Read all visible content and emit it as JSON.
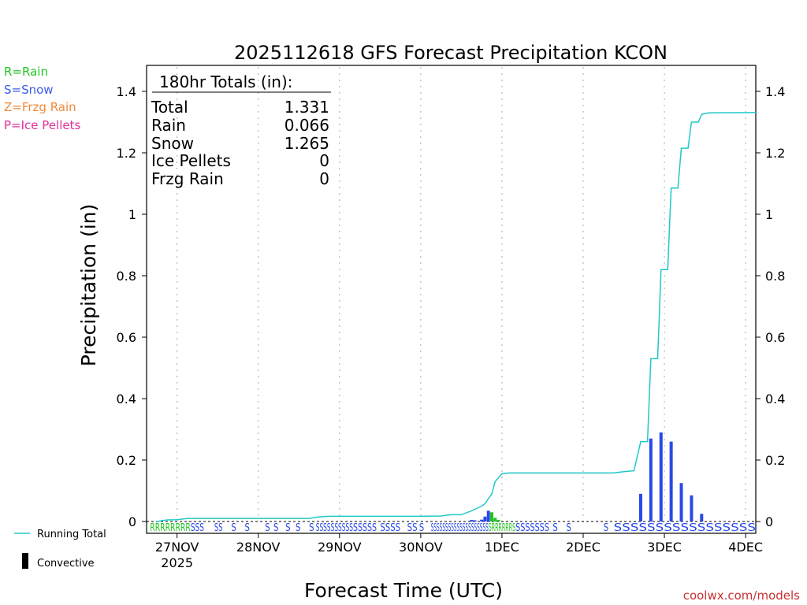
{
  "legend_types": [
    {
      "label": "R=Rain",
      "color": "#22c322"
    },
    {
      "label": "S=Snow",
      "color": "#3a5ee8"
    },
    {
      "label": "Z=Frzg Rain",
      "color": "#f08a3a"
    },
    {
      "label": "P=Ice Pellets",
      "color": "#e0329a"
    }
  ],
  "bottom_legend": {
    "running_total": "Running Total",
    "convective": "Convective"
  },
  "credit": "coolwx.com/models",
  "totals_box": {
    "header": "180hr Totals (in):",
    "rows": [
      {
        "label": "Total",
        "value": "1.331"
      },
      {
        "label": "Rain",
        "value": "0.066"
      },
      {
        "label": "Snow",
        "value": "1.265"
      },
      {
        "label": "Ice Pellets",
        "value": "0"
      },
      {
        "label": "Frzg Rain",
        "value": "0"
      }
    ]
  },
  "colors": {
    "running_total": "#20c8c8",
    "snow": "#2848e8",
    "rain": "#22c322",
    "grid": "#b8b8b8"
  },
  "chart_data": {
    "type": "bar",
    "title": "2025112618 GFS Forecast Precipitation KCON",
    "xlabel": "Forecast Time (UTC)",
    "ylabel": "Precipitation (in)",
    "ylim": [
      0,
      1.45
    ],
    "yticks": [
      0,
      0.2,
      0.4,
      0.6,
      0.8,
      1,
      1.2,
      1.4
    ],
    "ytick_labels": [
      "0",
      "0.2",
      "0.4",
      "0.6",
      "0.8",
      "1",
      "1.2",
      "1.4"
    ],
    "xlim_hours": [
      -3,
      177
    ],
    "x_ticks": [
      {
        "hour": 6,
        "label": "27NOV",
        "sub": "2025"
      },
      {
        "hour": 30,
        "label": "28NOV"
      },
      {
        "hour": 54,
        "label": "29NOV"
      },
      {
        "hour": 78,
        "label": "30NOV"
      },
      {
        "hour": 102,
        "label": "1DEC"
      },
      {
        "hour": 126,
        "label": "2DEC"
      },
      {
        "hour": 150,
        "label": "3DEC"
      },
      {
        "hour": 174,
        "label": "4DEC"
      }
    ],
    "running_total": [
      [
        0,
        0
      ],
      [
        3,
        0.005
      ],
      [
        6,
        0.006
      ],
      [
        9,
        0.01
      ],
      [
        24,
        0.01
      ],
      [
        45,
        0.01
      ],
      [
        48,
        0.015
      ],
      [
        51,
        0.017
      ],
      [
        78,
        0.017
      ],
      [
        84,
        0.018
      ],
      [
        87,
        0.022
      ],
      [
        90,
        0.022
      ],
      [
        93,
        0.035
      ],
      [
        96,
        0.05
      ],
      [
        97,
        0.058
      ],
      [
        99,
        0.09
      ],
      [
        100,
        0.13
      ],
      [
        102,
        0.155
      ],
      [
        104,
        0.158
      ],
      [
        135,
        0.158
      ],
      [
        138,
        0.162
      ],
      [
        141,
        0.165
      ],
      [
        143,
        0.26
      ],
      [
        145,
        0.26
      ],
      [
        146,
        0.53
      ],
      [
        148,
        0.53
      ],
      [
        149,
        0.82
      ],
      [
        151,
        0.82
      ],
      [
        152,
        1.085
      ],
      [
        154,
        1.085
      ],
      [
        155,
        1.215
      ],
      [
        157,
        1.215
      ],
      [
        158,
        1.3
      ],
      [
        160,
        1.3
      ],
      [
        161,
        1.325
      ],
      [
        163,
        1.33
      ],
      [
        177,
        1.331
      ]
    ],
    "series": [
      {
        "name": "Snow",
        "bars": [
          [
            93,
            0.005
          ],
          [
            94,
            0.004
          ],
          [
            96,
            0.006
          ],
          [
            97,
            0.016
          ],
          [
            98,
            0.035
          ],
          [
            143,
            0.09
          ],
          [
            146,
            0.27
          ],
          [
            149,
            0.29
          ],
          [
            152,
            0.26
          ],
          [
            155,
            0.125
          ],
          [
            158,
            0.085
          ],
          [
            161,
            0.025
          ]
        ]
      },
      {
        "name": "Rain",
        "bars": [
          [
            99,
            0.03
          ],
          [
            100,
            0.012
          ],
          [
            101,
            0.005
          ]
        ]
      }
    ],
    "precip_type_marks": [
      {
        "text": "RRRRRRRR",
        "hour_start": -2,
        "hour_end": 10,
        "type": "rain"
      },
      {
        "text": "SSS",
        "hour_start": 10,
        "hour_end": 14,
        "type": "snow"
      },
      {
        "text": "SS",
        "hour_start": 17,
        "hour_end": 19.5,
        "type": "snow"
      },
      {
        "text": "S",
        "hour_start": 22,
        "hour_end": 23.5,
        "type": "snow"
      },
      {
        "text": "S",
        "hour_start": 26,
        "hour_end": 27.5,
        "type": "snow"
      },
      {
        "text": "S",
        "hour_start": 32,
        "hour_end": 33.5,
        "type": "snow"
      },
      {
        "text": "S",
        "hour_start": 34.5,
        "hour_end": 36,
        "type": "snow"
      },
      {
        "text": "S",
        "hour_start": 38,
        "hour_end": 39.5,
        "type": "snow"
      },
      {
        "text": "S",
        "hour_start": 41,
        "hour_end": 42.5,
        "type": "snow"
      },
      {
        "text": "S",
        "hour_start": 45,
        "hour_end": 46.5,
        "type": "snow"
      },
      {
        "text": "SSSSSSSSSS",
        "hour_start": 47,
        "hour_end": 58,
        "type": "snow"
      },
      {
        "text": "SSSSS",
        "hour_start": 58,
        "hour_end": 65,
        "type": "snow"
      },
      {
        "text": "SSSS",
        "hour_start": 66,
        "hour_end": 72,
        "type": "snow"
      },
      {
        "text": "SS",
        "hour_start": 74,
        "hour_end": 77,
        "type": "snow"
      },
      {
        "text": "S",
        "hour_start": 77.5,
        "hour_end": 79,
        "type": "snow"
      },
      {
        "text": "SSSSSSSSSSSSSSSSSSSS",
        "hour_start": 81,
        "hour_end": 98,
        "type": "snow"
      },
      {
        "text": "SRRRRRRS",
        "hour_start": 98,
        "hour_end": 106,
        "type": "rain"
      },
      {
        "text": "SSSSSSS",
        "hour_start": 106,
        "hour_end": 116,
        "type": "snow"
      },
      {
        "text": "S",
        "hour_start": 117,
        "hour_end": 118.5,
        "type": "snow"
      },
      {
        "text": "S",
        "hour_start": 121,
        "hour_end": 122.5,
        "type": "snow"
      },
      {
        "text": "S",
        "hour_start": 132,
        "hour_end": 133.5,
        "type": "snow"
      },
      {
        "text": "SSSSSSSSSSSSSSSSS",
        "hour_start": 135,
        "hour_end": 177,
        "type": "snow"
      }
    ]
  }
}
